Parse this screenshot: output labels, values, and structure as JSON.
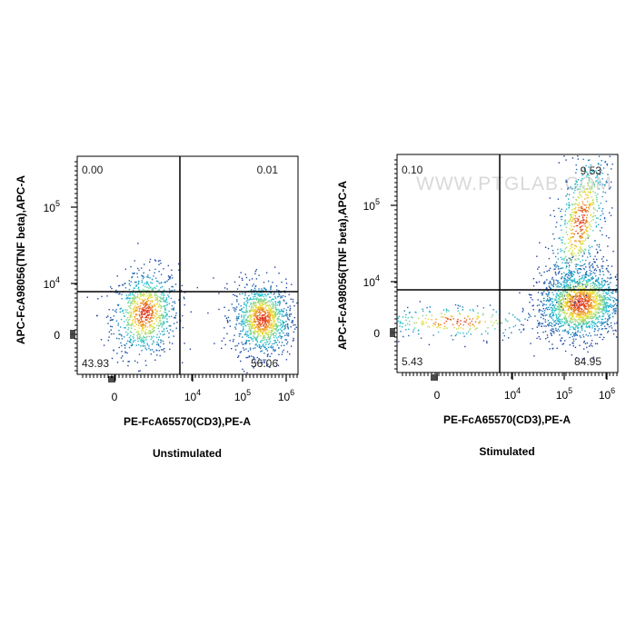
{
  "chart_data": [
    {
      "type": "scatter",
      "title": "Unstimulated",
      "xlabel": "PE-FcA65570(CD3),PE-A",
      "ylabel": "APC-FcA98056(TNF beta),APC-A",
      "x_ticks": [
        {
          "value": "0",
          "sup": ""
        },
        {
          "value": "10",
          "sup": "4"
        },
        {
          "value": "10",
          "sup": "5"
        },
        {
          "value": "10",
          "sup": "6"
        }
      ],
      "y_ticks": [
        {
          "value": "0",
          "sup": ""
        },
        {
          "value": "10",
          "sup": "4"
        },
        {
          "value": "10",
          "sup": "5"
        }
      ],
      "quadrants": {
        "top_left": "0.00",
        "top_right": "0.01",
        "bottom_left": "43.93",
        "bottom_right": "56.06"
      },
      "populations": [
        {
          "center": [
            1.55,
            0.42
          ],
          "count": 900
        },
        {
          "center": [
            4.95,
            0.32
          ],
          "count": 1100
        }
      ],
      "watermark": ""
    },
    {
      "type": "scatter",
      "title": "Stimulated",
      "xlabel": "PE-FcA65570(CD3),PE-A",
      "ylabel": "APC-FcA98056(TNF beta),APC-A",
      "x_ticks": [
        {
          "value": "0",
          "sup": ""
        },
        {
          "value": "10",
          "sup": "4"
        },
        {
          "value": "10",
          "sup": "5"
        },
        {
          "value": "10",
          "sup": "6"
        }
      ],
      "y_ticks": [
        {
          "value": "0",
          "sup": ""
        },
        {
          "value": "10",
          "sup": "4"
        },
        {
          "value": "10",
          "sup": "5"
        }
      ],
      "quadrants": {
        "top_left": "0.10",
        "top_right": "9.53",
        "bottom_left": "5.43",
        "bottom_right": "84.95"
      },
      "populations": [
        {
          "center": [
            4.9,
            0.55
          ],
          "count": 1700
        },
        {
          "center": [
            1.3,
            0.25
          ],
          "count": 260
        },
        {
          "center": [
            4.9,
            1.9
          ],
          "count": 650
        }
      ],
      "watermark": "WWW.PTGLAB.COM"
    }
  ],
  "colors": {
    "density_low": "#1f3b9e",
    "density_mid": "#22c4d6",
    "density_high": "#f4e22a",
    "density_peak": "#e0301e"
  }
}
